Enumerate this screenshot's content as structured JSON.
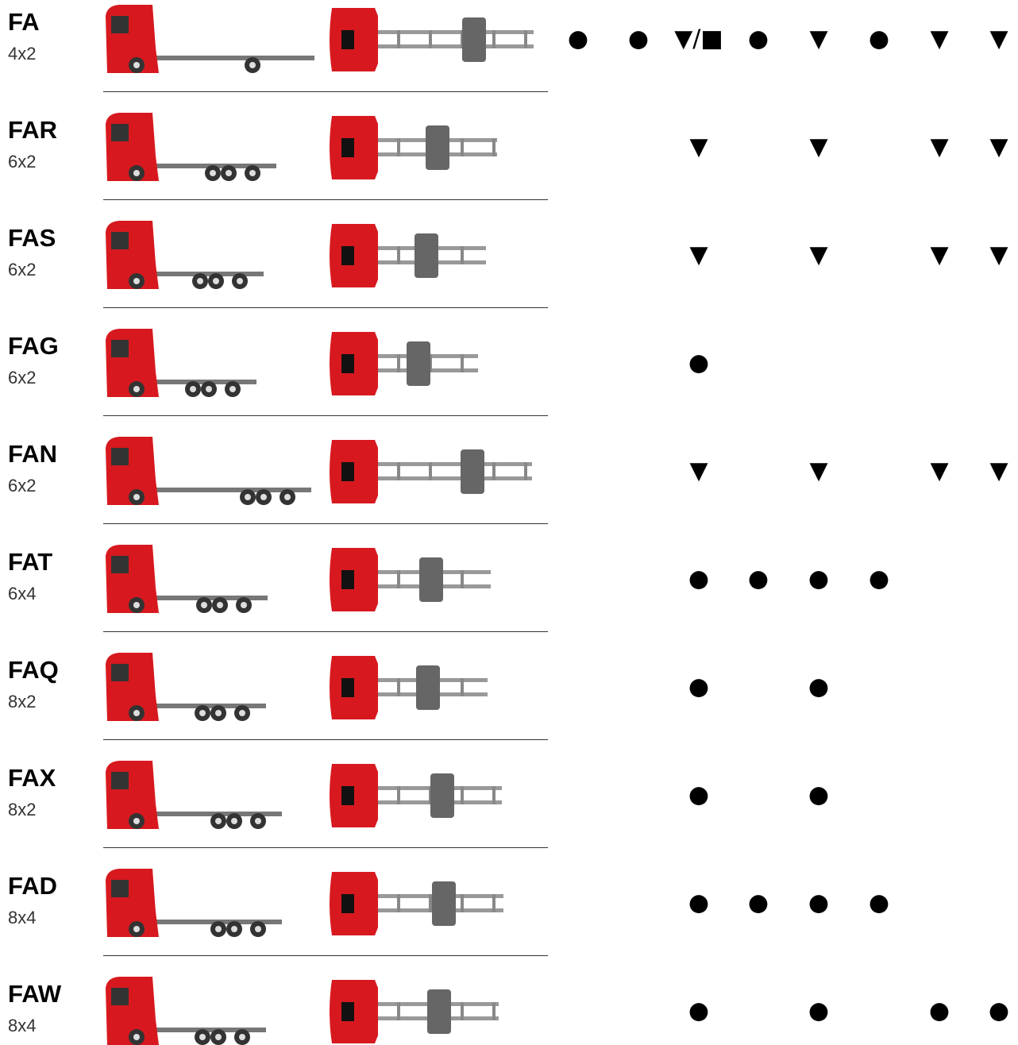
{
  "rows": [
    {
      "code": "FA",
      "config": "4x2",
      "cells": [
        "●",
        "●",
        "▼/■",
        "●",
        "▼",
        "●",
        "▼",
        "▼"
      ]
    },
    {
      "code": "FAR",
      "config": "6x2",
      "cells": [
        null,
        null,
        "▼",
        null,
        "▼",
        null,
        "▼",
        "▼"
      ]
    },
    {
      "code": "FAS",
      "config": "6x2",
      "cells": [
        null,
        null,
        "▼",
        null,
        "▼",
        null,
        "▼",
        "▼"
      ]
    },
    {
      "code": "FAG",
      "config": "6x2",
      "cells": [
        null,
        null,
        "●",
        null,
        null,
        null,
        null,
        null
      ]
    },
    {
      "code": "FAN",
      "config": "6x2",
      "cells": [
        null,
        null,
        "▼",
        null,
        "▼",
        null,
        "▼",
        "▼"
      ]
    },
    {
      "code": "FAT",
      "config": "6x4",
      "cells": [
        null,
        null,
        "●",
        "●",
        "●",
        "●",
        null,
        null
      ]
    },
    {
      "code": "FAQ",
      "config": "8x2",
      "cells": [
        null,
        null,
        "●",
        null,
        "●",
        null,
        null,
        null
      ]
    },
    {
      "code": "FAX",
      "config": "8x2",
      "cells": [
        null,
        null,
        "●",
        null,
        "●",
        null,
        null,
        null
      ]
    },
    {
      "code": "FAD",
      "config": "8x4",
      "cells": [
        null,
        null,
        "●",
        "●",
        "●",
        "●",
        null,
        null
      ]
    },
    {
      "code": "FAW",
      "config": "8x4",
      "cells": [
        null,
        null,
        "●",
        null,
        "●",
        null,
        "●",
        "●"
      ]
    }
  ]
}
